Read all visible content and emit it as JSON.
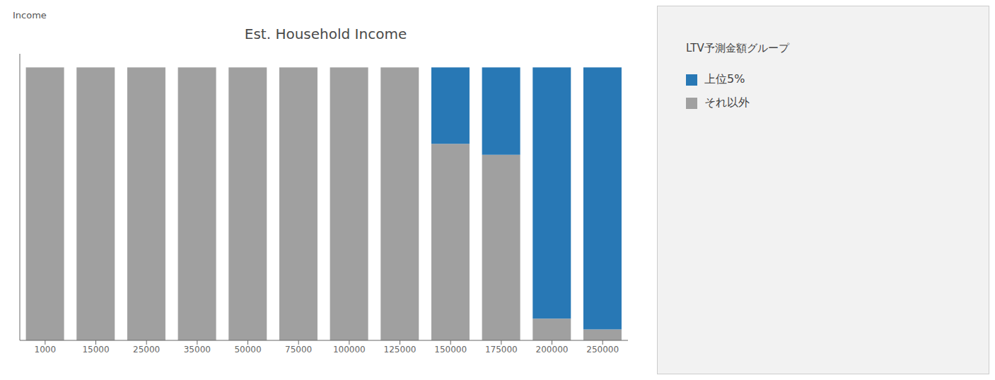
{
  "chart_data": {
    "type": "bar",
    "title": "Est. Household Income",
    "ylabel": "Income",
    "legend_title": "LTV予測金額グループ",
    "categories": [
      "1000",
      "15000",
      "25000",
      "35000",
      "50000",
      "75000",
      "100000",
      "125000",
      "150000",
      "175000",
      "200000",
      "250000"
    ],
    "series": [
      {
        "name": "それ以外",
        "color": "#a0a0a0",
        "values": [
          100,
          100,
          100,
          100,
          100,
          100,
          100,
          100,
          72,
          68,
          8,
          4
        ]
      },
      {
        "name": "上位5%",
        "color": "#2878b5",
        "values": [
          0,
          0,
          0,
          0,
          0,
          0,
          0,
          0,
          28,
          32,
          92,
          96
        ]
      }
    ],
    "stacked": true,
    "ylim": [
      0,
      105
    ],
    "grid": false,
    "legend": "right",
    "tick_labels": "x"
  }
}
